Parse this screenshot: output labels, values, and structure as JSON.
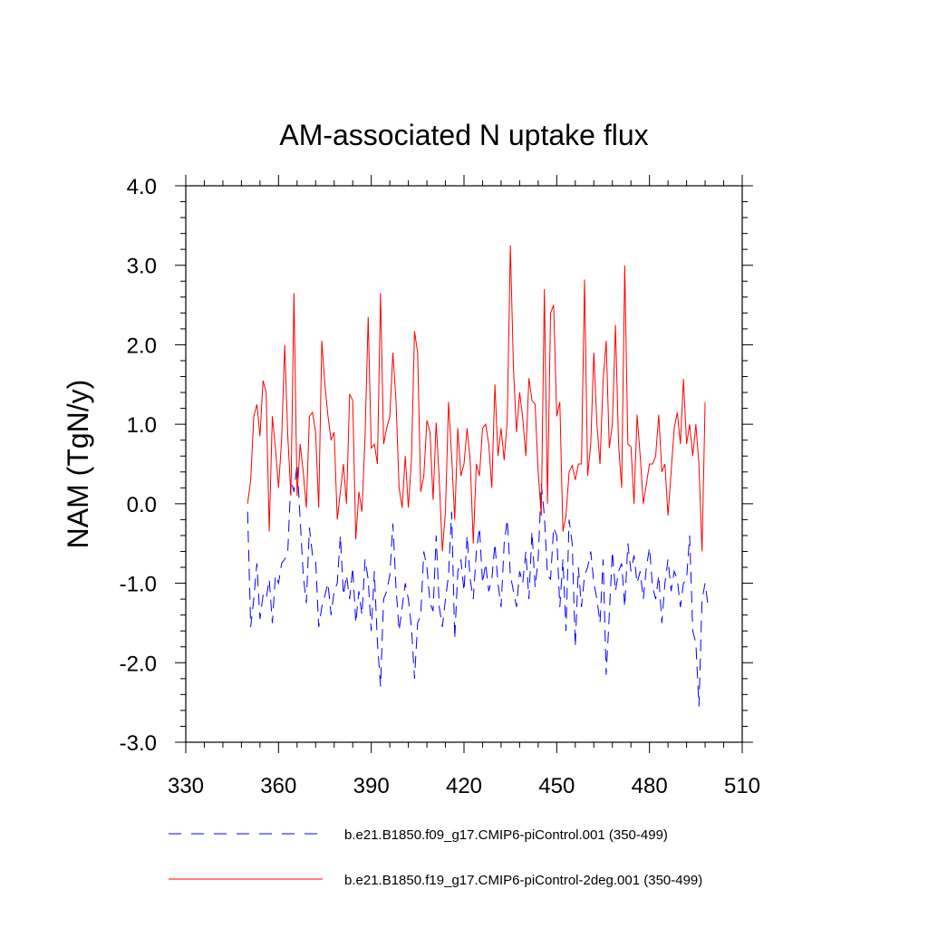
{
  "chart_data": {
    "type": "line",
    "title": "AM-associated N uptake flux",
    "xlabel": "",
    "ylabel": "NAM  (TgN/y)",
    "xlim": [
      330,
      510
    ],
    "ylim": [
      -3.0,
      4.0
    ],
    "xticks": [
      330,
      360,
      390,
      420,
      450,
      480,
      510
    ],
    "xtick_labels": [
      "330",
      "360",
      "390",
      "420",
      "450",
      "480",
      "510"
    ],
    "yticks": [
      -3.0,
      -2.0,
      -1.0,
      0.0,
      1.0,
      2.0,
      3.0,
      4.0
    ],
    "ytick_labels": [
      "-3.0",
      "-2.0",
      "-1.0",
      "0.0",
      "1.0",
      "2.0",
      "3.0",
      "4.0"
    ],
    "x_start": 350,
    "x_step": 1,
    "series": [
      {
        "name": "b.e21.B1850.f09_g17.CMIP6-piControl.001 (350-499)",
        "color": "#0000ff",
        "style": "dashed",
        "values": [
          -0.1,
          -1.55,
          -1.2,
          -0.75,
          -1.45,
          -1.15,
          -1.2,
          -0.95,
          -1.5,
          -0.9,
          -1.0,
          -0.75,
          -0.7,
          -0.6,
          0.3,
          0.15,
          0.5,
          -0.2,
          -0.9,
          -1.25,
          -0.3,
          -0.65,
          -0.7,
          -1.55,
          -1.3,
          -1.15,
          -1.0,
          -1.4,
          -1.1,
          -1.0,
          -0.4,
          -1.15,
          -0.9,
          -1.2,
          -0.8,
          -1.5,
          -1.1,
          -1.4,
          -0.7,
          -0.95,
          -1.6,
          -0.85,
          -1.75,
          -2.3,
          -1.2,
          -1.1,
          -0.9,
          -0.25,
          -1.05,
          -1.6,
          -1.3,
          -1.0,
          -1.2,
          -1.55,
          -2.2,
          -1.5,
          -1.4,
          -0.6,
          -0.8,
          -1.25,
          -1.35,
          -0.4,
          -1.3,
          -1.55,
          -1.2,
          -0.9,
          -0.1,
          -1.7,
          -0.85,
          -0.7,
          -1.1,
          -0.4,
          -0.95,
          -1.2,
          -0.6,
          -0.3,
          -1.0,
          -0.75,
          -1.1,
          -0.95,
          -0.5,
          -1.0,
          -1.3,
          -0.5,
          -0.2,
          -0.9,
          -1.1,
          -1.3,
          -0.85,
          -1.0,
          -0.6,
          -1.2,
          -0.35,
          -1.05,
          -0.7,
          0.25,
          -0.15,
          -0.9,
          -0.95,
          -0.3,
          -0.4,
          -1.3,
          -0.7,
          -1.6,
          -0.2,
          -0.5,
          -1.8,
          -0.8,
          -1.3,
          -0.9,
          -0.8,
          -0.6,
          -1.0,
          -1.2,
          -1.5,
          -0.7,
          -2.15,
          -1.4,
          -0.6,
          -1.1,
          -0.85,
          -0.75,
          -1.3,
          -0.5,
          -0.85,
          -0.65,
          -1.0,
          -0.85,
          -1.2,
          -0.8,
          -0.55,
          -1.05,
          -1.2,
          -0.9,
          -1.5,
          -1.0,
          -0.7,
          -1.1,
          -0.85,
          -0.95,
          -1.3,
          -1.0,
          -0.95,
          -0.4,
          -1.6,
          -1.75,
          -2.55,
          -1.2,
          -1.0,
          -1.3
        ]
      },
      {
        "name": "b.e21.B1850.f19_g17.CMIP6-piControl-2deg.001 (350-499)",
        "color": "#ff0000",
        "style": "solid",
        "values": [
          0.0,
          0.3,
          1.1,
          1.25,
          0.85,
          1.55,
          1.4,
          -0.35,
          1.1,
          0.7,
          0.2,
          0.8,
          2.0,
          0.85,
          0.1,
          2.65,
          0.1,
          0.75,
          0.4,
          -0.05,
          1.1,
          1.15,
          0.9,
          -0.05,
          2.05,
          1.5,
          1.1,
          0.8,
          0.9,
          -0.2,
          0.15,
          0.5,
          0.0,
          1.38,
          1.3,
          -0.45,
          0.15,
          -0.1,
          0.85,
          2.35,
          0.7,
          0.75,
          0.5,
          2.65,
          0.75,
          0.95,
          1.1,
          1.9,
          1.3,
          0.2,
          -0.05,
          0.6,
          -0.05,
          0.55,
          2.17,
          1.9,
          0.15,
          0.35,
          1.05,
          0.9,
          0.05,
          1.02,
          0.3,
          -0.6,
          -0.1,
          1.28,
          0.6,
          -0.2,
          0.95,
          0.35,
          0.5,
          0.95,
          0.55,
          -0.5,
          0.5,
          0.35,
          0.95,
          1.0,
          0.75,
          0.2,
          1.5,
          0.6,
          0.95,
          0.55,
          1.05,
          3.25,
          1.7,
          0.9,
          1.4,
          1.08,
          0.6,
          1.58,
          1.3,
          1.25,
          0.4,
          -0.15,
          2.7,
          0.0,
          2.4,
          2.5,
          1.1,
          1.28,
          -0.35,
          -0.15,
          0.4,
          0.48,
          0.3,
          0.5,
          0.5,
          2.82,
          0.35,
          0.75,
          1.9,
          1.0,
          0.5,
          1.55,
          2.05,
          0.7,
          1.0,
          2.25,
          0.75,
          0.2,
          3.0,
          0.75,
          0.72,
          0.0,
          1.12,
          0.6,
          0.0,
          0.25,
          0.5,
          0.5,
          0.6,
          1.12,
          0.4,
          0.5,
          -0.15,
          0.4,
          0.95,
          1.15,
          0.75,
          1.57,
          0.75,
          1.0,
          0.6,
          1.0,
          0.5,
          -0.6,
          1.28
        ]
      }
    ],
    "legend": {
      "placement": "bottom",
      "entries": [
        "b.e21.B1850.f09_g17.CMIP6-piControl.001 (350-499)",
        "b.e21.B1850.f19_g17.CMIP6-piControl-2deg.001 (350-499)"
      ]
    }
  }
}
